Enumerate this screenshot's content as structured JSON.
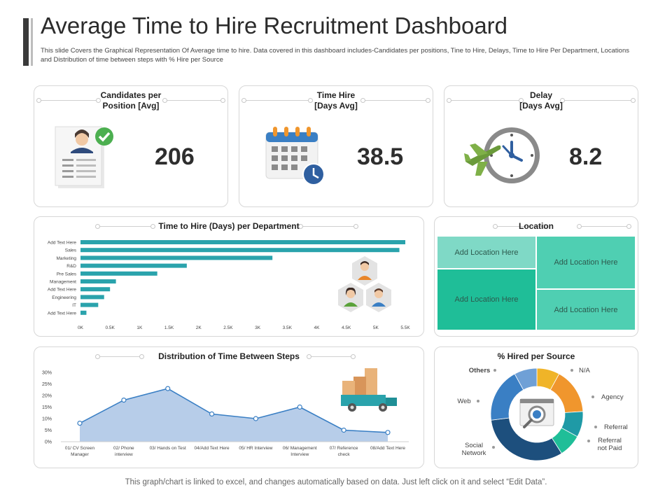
{
  "header": {
    "title": "Average Time to Hire Recruitment Dashboard",
    "subtitle": "This slide Covers the Graphical Representation Of Average time to hire. Data  covered in this dashboard includes-Candidates per positions, Tine to Hire, Delays, Time to Hire Per Department,  Locations and Distribution of time  between steps with % Hire per Source"
  },
  "kpis": {
    "candidates": {
      "title_line1": "Candidates per",
      "title_line2": "Position [Avg]",
      "value": "206",
      "icon": "resume-icon"
    },
    "time_hire": {
      "title_line1": "Time Hire",
      "title_line2": "[Days Avg]",
      "value": "38.5",
      "icon": "calendar-clock-icon"
    },
    "delay": {
      "title_line1": "Delay",
      "title_line2": "[Days Avg]",
      "value": "8.2",
      "icon": "plane-clock-icon"
    }
  },
  "location": {
    "title": "Location",
    "cells": [
      "Add Location Here",
      "Add Location Here",
      "Add Location Here",
      "Add Location Here"
    ]
  },
  "footer": "This graph/chart is linked to excel,  and changes automatically based on data. Just left click on it and select “Edit Data”.",
  "colors": {
    "bar": "#2aa3ac",
    "area_fill": "#b7cde9",
    "area_line": "#3a7fc4",
    "teal_light": "#6fd6bf",
    "teal": "#1fbe98",
    "teal_mid": "#4fcfb2"
  },
  "chart_data": [
    {
      "type": "bar",
      "orientation": "horizontal",
      "title": "Time to Hire (Days) per Department",
      "categories": [
        "Add Text Here",
        "Sales",
        "Marketing",
        "R&D",
        "Pre Sales",
        "Management",
        "Add Text Here",
        "Engineering",
        "IT",
        "Add Text Here"
      ],
      "values": [
        5500,
        5400,
        3250,
        1800,
        1300,
        600,
        500,
        400,
        300,
        100
      ],
      "xlim": [
        0,
        5500
      ],
      "ticks": [
        "0K",
        "0.5K",
        "1K",
        "1.5K",
        "2K",
        "2.5K",
        "3K",
        "3.5K",
        "4K",
        "4.5K",
        "5K",
        "5.5K"
      ],
      "tick_values": [
        0,
        500,
        1000,
        1500,
        2000,
        2500,
        3000,
        3500,
        4000,
        4500,
        5000,
        5500
      ]
    },
    {
      "type": "area",
      "title": "Distribution of Time Between Steps",
      "categories": [
        [
          "01/ CV Screen",
          "Manager"
        ],
        [
          "02/ Phone",
          "interview"
        ],
        [
          "03/ Hands on Test"
        ],
        [
          "04/Add Text Here"
        ],
        [
          "05/ HR Interview"
        ],
        [
          "06/ Management",
          "Interview"
        ],
        [
          "07/ Reference",
          "check"
        ],
        [
          "08/Add Text Here"
        ]
      ],
      "values": [
        8,
        18,
        23,
        12,
        10,
        15,
        5,
        4
      ],
      "ylim": [
        0,
        30
      ],
      "ticks": [
        "0%",
        "5%",
        "10%",
        "15%",
        "20%",
        "25%",
        "30%"
      ],
      "tick_values": [
        0,
        5,
        10,
        15,
        20,
        25,
        30
      ]
    },
    {
      "type": "pie",
      "variant": "donut",
      "title": "% Hired per Source",
      "labels": [
        "N/A",
        "Agency",
        "Referral",
        "Referral not Paid",
        "Social Network",
        "Web",
        "Others"
      ],
      "values": [
        8,
        16,
        9,
        8,
        32,
        19,
        8
      ],
      "colors": [
        "#f0b428",
        "#f0962d",
        "#1f9aa6",
        "#1fbe98",
        "#1d4f7d",
        "#3a7fc4",
        "#6fa0d6"
      ]
    }
  ]
}
